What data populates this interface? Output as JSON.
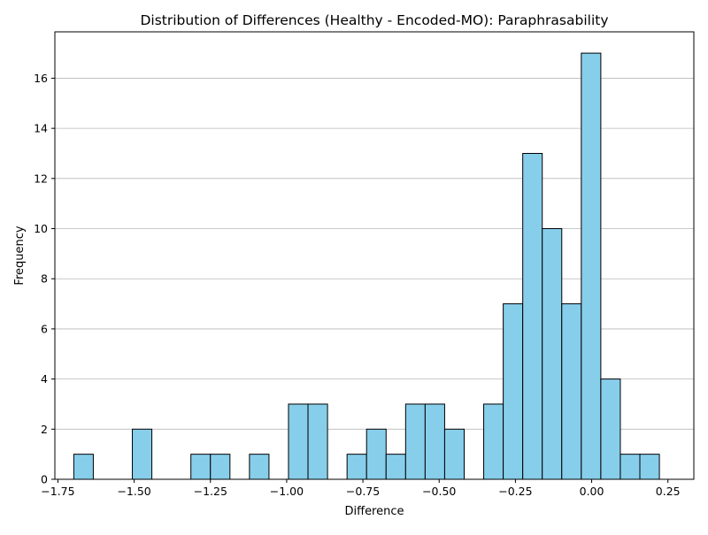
{
  "chart_data": {
    "type": "bar",
    "title": "Distribution of Differences (Healthy - Encoded-MO): Paraphrasability",
    "xlabel": "Difference",
    "ylabel": "Frequency",
    "xlim": [
      -1.76,
      0.335
    ],
    "ylim": [
      0,
      17.85
    ],
    "x_ticks": [
      -1.75,
      -1.5,
      -1.25,
      -1.0,
      -0.75,
      -0.5,
      -0.25,
      0.0,
      0.25
    ],
    "x_tick_labels": [
      "−1.75",
      "−1.50",
      "−1.25",
      "−1.00",
      "−0.75",
      "−0.50",
      "−0.25",
      "0.00",
      "0.25"
    ],
    "y_ticks": [
      0,
      2,
      4,
      6,
      8,
      10,
      12,
      14,
      16
    ],
    "y_tick_labels": [
      "0",
      "2",
      "4",
      "6",
      "8",
      "10",
      "12",
      "14",
      "16"
    ],
    "grid": "horizontal",
    "bar_color": "#87ceeb",
    "edge_color": "#000000",
    "bin_edges": [
      -1.698,
      -1.634,
      -1.57,
      -1.506,
      -1.442,
      -1.378,
      -1.314,
      -1.25,
      -1.186,
      -1.122,
      -1.058,
      -0.994,
      -0.93,
      -0.866,
      -0.802,
      -0.738,
      -0.674,
      -0.61,
      -0.546,
      -0.482,
      -0.418,
      -0.354,
      -0.29,
      -0.226,
      -0.162,
      -0.098,
      -0.034,
      0.03,
      0.094,
      0.158,
      0.222
    ],
    "counts": [
      1,
      0,
      0,
      2,
      0,
      0,
      1,
      1,
      0,
      1,
      0,
      3,
      3,
      0,
      1,
      2,
      1,
      3,
      3,
      2,
      0,
      3,
      7,
      13,
      10,
      7,
      17,
      4,
      1,
      1
    ]
  }
}
